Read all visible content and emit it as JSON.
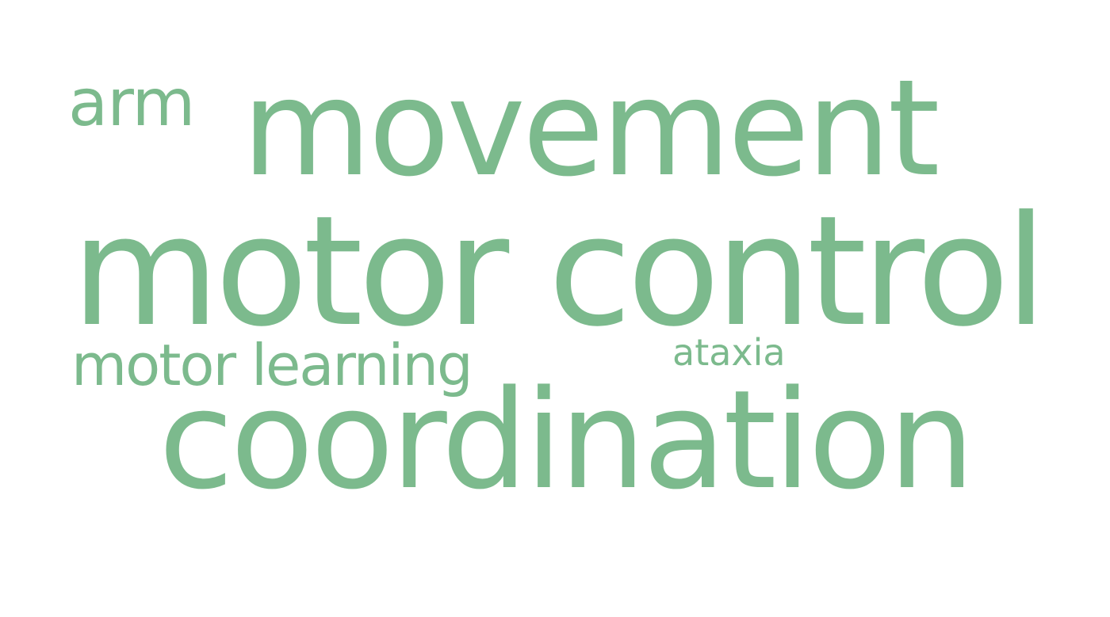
{
  "colors": {
    "word": "#7cba8d",
    "background": "#ffffff"
  },
  "words": {
    "arm": "arm",
    "movement": "movement",
    "motor_control": "motor control",
    "motor_learning": "motor learning",
    "ataxia": "ataxia",
    "coordination": "coordination"
  }
}
